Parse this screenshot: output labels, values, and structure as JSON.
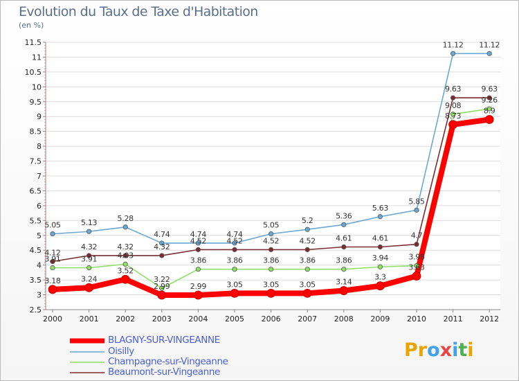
{
  "title": "Evolution du Taux de Taxe d'Habitation",
  "unit_label": "(en %)",
  "brand": {
    "text": "Proxiti",
    "colors": [
      "#e8a500",
      "#e8a500",
      "#43a1e6",
      "#e84646",
      "#43a1e6",
      "#4caf50",
      "#e8a500"
    ]
  },
  "chart_data": {
    "type": "line",
    "title": "Evolution du Taux de Taxe d'Habitation",
    "ylabel": "(en %)",
    "xlabel": "",
    "ylim": [
      2.5,
      11.5
    ],
    "yticks": [
      "2.5",
      "3",
      "3.5",
      "4",
      "4.5",
      "5",
      "5.5",
      "6",
      "6.5",
      "7",
      "7.5",
      "8",
      "8.5",
      "9",
      "9.5",
      "10",
      "10.5",
      "11",
      "11.5"
    ],
    "grid": "horizontal",
    "legend_position": "bottom-left",
    "x": [
      "2000",
      "2001",
      "2002",
      "2003",
      "2004",
      "2005",
      "2006",
      "2007",
      "2008",
      "2009",
      "2010",
      "2011",
      "2012"
    ],
    "series": [
      {
        "name": "BLAGNY-SUR-VINGEANNE",
        "color": "#ff0000",
        "emphasis": true,
        "values": [
          3.18,
          3.24,
          3.52,
          2.99,
          2.99,
          3.05,
          3.05,
          3.05,
          3.14,
          3.3,
          3.63,
          8.73,
          8.9
        ],
        "labels": [
          "3.18",
          "3.24",
          "3.52",
          "2.99",
          "2.99",
          "3.05",
          "3.05",
          "3.05",
          "3.14",
          "3.3",
          "3.63",
          "8.73",
          "8.9"
        ]
      },
      {
        "name": "Oisilly",
        "color": "#6aa7d4",
        "values": [
          5.05,
          5.13,
          5.28,
          4.74,
          4.74,
          4.74,
          5.05,
          5.2,
          5.36,
          5.63,
          5.85,
          11.12,
          11.12
        ],
        "labels": [
          "5.05",
          "5.13",
          "5.28",
          "4.74",
          "4.74",
          "4.74",
          "5.05",
          "5.2",
          "5.36",
          "5.63",
          "5.85",
          "11.12",
          "11.12"
        ]
      },
      {
        "name": "Champagne-sur-Vingeanne",
        "color": "#8ee065",
        "values": [
          3.91,
          3.91,
          4.03,
          3.22,
          3.86,
          3.86,
          3.86,
          3.86,
          3.86,
          3.94,
          3.98,
          9.08,
          9.26
        ],
        "labels": [
          "3.91",
          "3.91",
          "4.03",
          "3.22",
          "3.86",
          "3.86",
          "3.86",
          "3.86",
          "3.86",
          "3.94",
          "3.98",
          "9.08",
          "9.26"
        ]
      },
      {
        "name": "Beaumont-sur-Vingeanne",
        "color": "#7a2c30",
        "values": [
          4.12,
          4.32,
          4.32,
          4.32,
          4.52,
          4.52,
          4.52,
          4.52,
          4.61,
          4.61,
          4.7,
          9.63,
          9.63
        ],
        "labels": [
          "4.12",
          "4.32",
          "4.32",
          "4.32",
          "4.52",
          "4.52",
          "4.52",
          "4.52",
          "4.61",
          "4.61",
          "4.7",
          "9.63",
          "9.63"
        ]
      }
    ]
  }
}
